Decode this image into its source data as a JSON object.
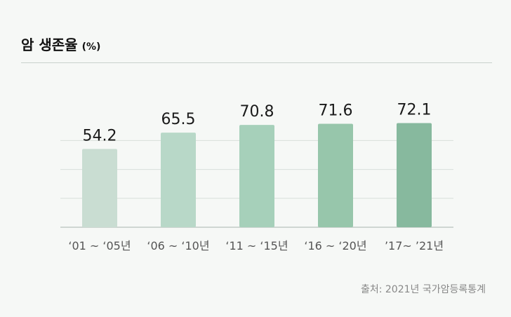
{
  "header": {
    "title": "암 생존율",
    "unit": "(%)"
  },
  "chart_data": {
    "type": "bar",
    "title": "암 생존율 (%)",
    "categories": [
      "‘01 ~ ‘05년",
      "‘06 ~ ‘10년",
      "‘11 ~ ‘15년",
      "‘16 ~ ‘20년",
      "’17~ ’21년"
    ],
    "values": [
      54.2,
      65.5,
      70.8,
      71.6,
      72.1
    ],
    "value_labels": [
      "54.2",
      "65.5",
      "70.8",
      "71.6",
      "72.1"
    ],
    "ylim": [
      0,
      100
    ],
    "grid": true,
    "xlabel": "",
    "ylabel": "",
    "bar_colors": [
      "#c9ddd2",
      "#b8d8c8",
      "#a6d0ba",
      "#97c6ab",
      "#87b99e"
    ]
  },
  "footer": {
    "source": "출처: 2021년 국가암등록통계"
  },
  "colors": {
    "background": "#f6f8f6",
    "grid": "#d8dfda",
    "axis": "#c2cac5"
  }
}
